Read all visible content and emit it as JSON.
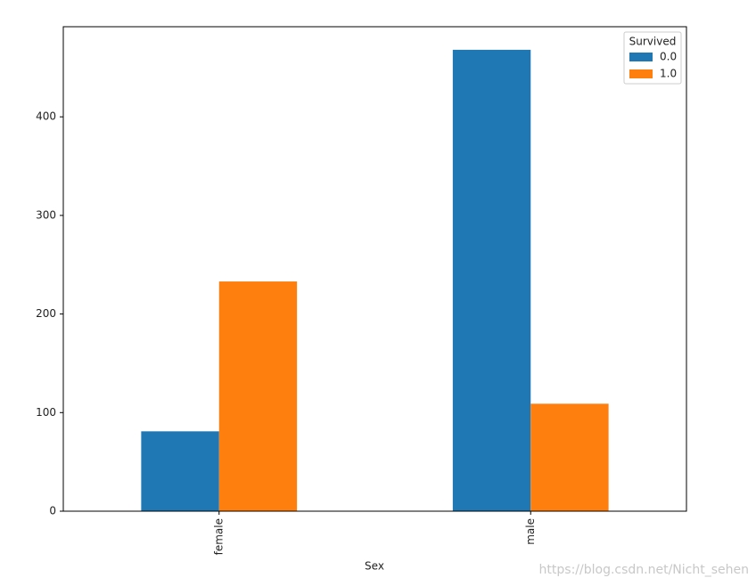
{
  "chart_data": {
    "type": "bar",
    "xlabel": "Sex",
    "categories": [
      "female",
      "male"
    ],
    "series": [
      {
        "name": "0.0",
        "color": "#1f77b4",
        "values": [
          81,
          468
        ]
      },
      {
        "name": "1.0",
        "color": "#ff7f0e",
        "values": [
          233,
          109
        ]
      }
    ],
    "legend_title": "Survived",
    "legend": "upper right",
    "ylim": [
      0,
      491.4
    ],
    "yticks": [
      0,
      100,
      200,
      300,
      400
    ],
    "grid": false
  },
  "watermark": "https://blog.csdn.net/Nicht_sehen"
}
